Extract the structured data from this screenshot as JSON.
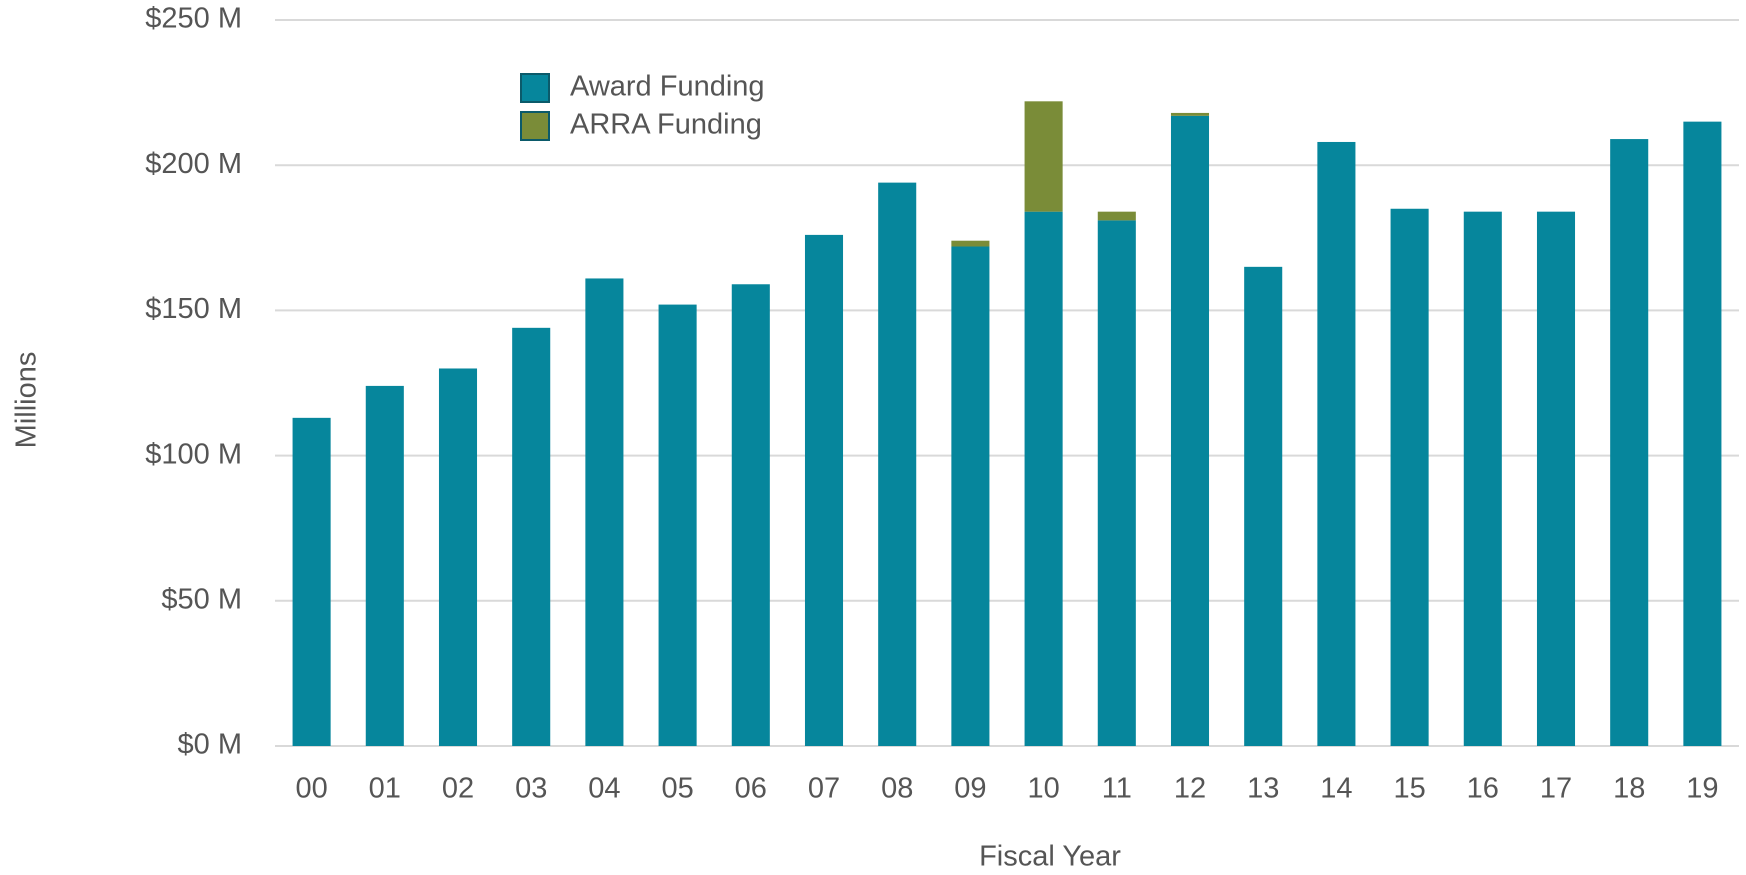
{
  "chart_data": {
    "type": "stacked_bar",
    "x_label": "Fiscal Year",
    "y_label": "Millions",
    "categories": [
      "00",
      "01",
      "02",
      "03",
      "04",
      "05",
      "06",
      "07",
      "08",
      "09",
      "10",
      "11",
      "12",
      "13",
      "14",
      "15",
      "16",
      "17",
      "18",
      "19"
    ],
    "series": [
      {
        "name": "Award Funding",
        "color": "#06869c",
        "values": [
          113,
          124,
          130,
          144,
          161,
          152,
          159,
          176,
          194,
          172,
          184,
          181,
          217,
          165,
          208,
          185,
          184,
          184,
          209,
          215
        ]
      },
      {
        "name": "ARRA Funding",
        "color": "#7a8c38",
        "values": [
          null,
          null,
          null,
          null,
          null,
          null,
          null,
          null,
          null,
          2,
          38,
          3,
          1,
          null,
          null,
          null,
          null,
          null,
          null,
          null
        ]
      }
    ],
    "ylim": [
      0,
      250
    ],
    "yticks": [
      {
        "value": 0,
        "label": "$0 M"
      },
      {
        "value": 50,
        "label": "$50 M"
      },
      {
        "value": 100,
        "label": "$100 M"
      },
      {
        "value": 150,
        "label": "$150 M"
      },
      {
        "value": 200,
        "label": "$200 M"
      },
      {
        "value": 250,
        "label": "$250 M"
      }
    ],
    "grid": true,
    "legend": "upper left"
  }
}
